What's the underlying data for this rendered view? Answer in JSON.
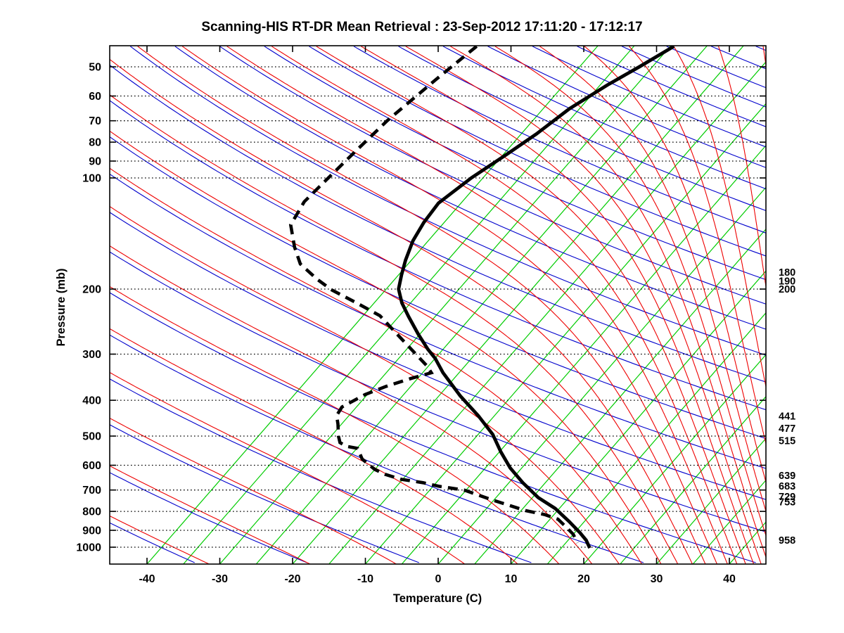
{
  "title": "Scanning-HIS RT-DR Mean Retrieval : 23-Sep-2012 17:11:20 - 17:12:17",
  "axes": {
    "y_label": "Pressure (mb)",
    "x_label": "Temperature (C)",
    "pressure_ticks": [
      50,
      60,
      70,
      80,
      90,
      100,
      200,
      300,
      400,
      500,
      600,
      700,
      800,
      900,
      1000
    ],
    "temperature_ticks": [
      -40,
      -30,
      -20,
      -10,
      0,
      10,
      20,
      30,
      40
    ]
  },
  "side_labels": [
    180,
    190,
    200,
    441,
    477,
    515,
    639,
    683,
    729,
    753,
    958
  ],
  "colors": {
    "isotherm": "#00CC00",
    "dry_adiabat": "#0000CC",
    "moist_adiabat": "#EE0000",
    "profile": "#000000",
    "grid": "#000000",
    "frame": "#000000"
  },
  "chart_data": {
    "type": "line",
    "title": "Scanning-HIS RT-DR Mean Retrieval : 23-Sep-2012 17:11:20 - 17:12:17",
    "xlabel": "Temperature (C)",
    "ylabel": "Pressure (mb)",
    "x_range": [
      -45,
      45
    ],
    "pressure_range": [
      44,
      1110
    ],
    "skew_c_per_decade": 44,
    "grid": "dotted horizontal isobars at labeled pressures",
    "legend": "none",
    "series": [
      {
        "name": "temperature",
        "style": "solid",
        "color": "#000000",
        "points": [
          [
            44,
            -29.5
          ],
          [
            50,
            -31.8
          ],
          [
            56,
            -34.0
          ],
          [
            65,
            -36.4
          ],
          [
            76,
            -37.9
          ],
          [
            86,
            -39.5
          ],
          [
            100,
            -41.6
          ],
          [
            117,
            -43.1
          ],
          [
            132,
            -42.8
          ],
          [
            148,
            -42.1
          ],
          [
            167,
            -40.8
          ],
          [
            183,
            -39.6
          ],
          [
            200,
            -38.3
          ],
          [
            218,
            -36.2
          ],
          [
            237,
            -33.7
          ],
          [
            265,
            -30.2
          ],
          [
            291,
            -27.1
          ],
          [
            308,
            -25.0
          ],
          [
            337,
            -22.2
          ],
          [
            390,
            -17.0
          ],
          [
            442,
            -12.1
          ],
          [
            495,
            -8.0
          ],
          [
            552,
            -4.8
          ],
          [
            610,
            -1.6
          ],
          [
            669,
            1.9
          ],
          [
            734,
            5.8
          ],
          [
            785,
            9.4
          ],
          [
            852,
            12.9
          ],
          [
            913,
            15.7
          ],
          [
            958,
            17.5
          ],
          [
            1005,
            18.9
          ]
        ]
      },
      {
        "name": "dewpoint",
        "style": "dashed",
        "color": "#000000",
        "points": [
          [
            44,
            -56.6
          ],
          [
            54,
            -58.2
          ],
          [
            70,
            -60.0
          ],
          [
            85,
            -60.7
          ],
          [
            102,
            -61.3
          ],
          [
            116,
            -61.7
          ],
          [
            134,
            -60.8
          ],
          [
            154,
            -57.6
          ],
          [
            171,
            -54.8
          ],
          [
            188,
            -50.7
          ],
          [
            201,
            -47.4
          ],
          [
            217,
            -42.7
          ],
          [
            236,
            -37.7
          ],
          [
            265,
            -33.1
          ],
          [
            299,
            -28.3
          ],
          [
            324,
            -25.1
          ],
          [
            337,
            -23.8
          ],
          [
            349,
            -25.9
          ],
          [
            367,
            -28.4
          ],
          [
            386,
            -30.3
          ],
          [
            417,
            -32.0
          ],
          [
            440,
            -31.7
          ],
          [
            464,
            -30.5
          ],
          [
            500,
            -29.0
          ],
          [
            521,
            -28.0
          ],
          [
            533,
            -26.7
          ],
          [
            540,
            -24.9
          ],
          [
            577,
            -23.0
          ],
          [
            595,
            -21.6
          ],
          [
            616,
            -20.0
          ],
          [
            635,
            -18.0
          ],
          [
            655,
            -15.2
          ],
          [
            669,
            -11.8
          ],
          [
            684,
            -9.2
          ],
          [
            700,
            -5.3
          ],
          [
            746,
            -0.1
          ],
          [
            795,
            5.5
          ],
          [
            816,
            8.7
          ],
          [
            840,
            11.1
          ],
          [
            883,
            13.2
          ],
          [
            923,
            15.0
          ],
          [
            973,
            16.6
          ]
        ]
      }
    ],
    "background": {
      "isotherms_c": {
        "min": -40,
        "max": 45,
        "step": 5
      },
      "dry_adiabats_theta_k": {
        "min": 218,
        "max": 698,
        "step": 15
      },
      "moist_adiabats": "one pseudoadiabat per dry adiabat (same asymptotic theta)"
    }
  }
}
